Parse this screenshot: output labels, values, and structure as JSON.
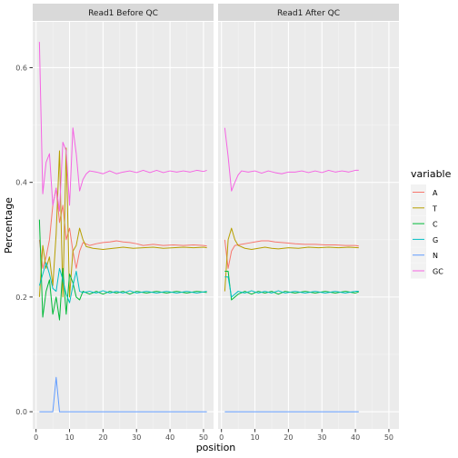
{
  "chart_data": {
    "type": "line",
    "facets": [
      "Read1 Before QC",
      "Read1 After QC"
    ],
    "xlabel": "position",
    "ylabel": "Percentage",
    "xlim": [
      -1,
      53
    ],
    "ylim": [
      -0.03,
      0.68
    ],
    "x_ticks": [
      0,
      10,
      20,
      30,
      40,
      50
    ],
    "y_ticks": [
      0.0,
      0.2,
      0.4,
      0.6
    ],
    "y_tick_labels": [
      "0.0",
      "0.2",
      "0.4",
      "0.6"
    ],
    "grid": true,
    "legend": {
      "title": "variable",
      "placement": "right",
      "items": [
        "A",
        "T",
        "C",
        "G",
        "N",
        "GC"
      ]
    },
    "series": [
      {
        "name": "A",
        "color": "#F8766D",
        "before": [
          [
            1,
            0.3
          ],
          [
            2,
            0.25
          ],
          [
            3,
            0.27
          ],
          [
            4,
            0.3
          ],
          [
            5,
            0.36
          ],
          [
            6,
            0.39
          ],
          [
            7,
            0.33
          ],
          [
            8,
            0.36
          ],
          [
            9,
            0.3
          ],
          [
            10,
            0.32
          ],
          [
            11,
            0.28
          ],
          [
            12,
            0.25
          ],
          [
            13,
            0.28
          ],
          [
            14,
            0.295
          ],
          [
            16,
            0.29
          ],
          [
            18,
            0.293
          ],
          [
            20,
            0.295
          ],
          [
            22,
            0.296
          ],
          [
            24,
            0.298
          ],
          [
            26,
            0.296
          ],
          [
            28,
            0.295
          ],
          [
            30,
            0.293
          ],
          [
            32,
            0.29
          ],
          [
            35,
            0.292
          ],
          [
            38,
            0.29
          ],
          [
            41,
            0.291
          ],
          [
            44,
            0.29
          ],
          [
            47,
            0.291
          ],
          [
            50,
            0.29
          ],
          [
            51,
            0.289
          ]
        ],
        "after": [
          [
            1,
            0.3
          ],
          [
            2,
            0.25
          ],
          [
            3,
            0.28
          ],
          [
            4,
            0.29
          ],
          [
            6,
            0.292
          ],
          [
            8,
            0.294
          ],
          [
            10,
            0.296
          ],
          [
            12,
            0.298
          ],
          [
            14,
            0.298
          ],
          [
            16,
            0.296
          ],
          [
            18,
            0.295
          ],
          [
            20,
            0.294
          ],
          [
            22,
            0.293
          ],
          [
            25,
            0.292
          ],
          [
            28,
            0.292
          ],
          [
            31,
            0.291
          ],
          [
            34,
            0.291
          ],
          [
            37,
            0.29
          ],
          [
            40,
            0.29
          ],
          [
            41,
            0.289
          ]
        ]
      },
      {
        "name": "T",
        "color": "#B79F00",
        "before": [
          [
            1,
            0.2
          ],
          [
            2,
            0.29
          ],
          [
            3,
            0.25
          ],
          [
            4,
            0.27
          ],
          [
            5,
            0.22
          ],
          [
            6,
            0.31
          ],
          [
            7,
            0.455
          ],
          [
            8,
            0.2
          ],
          [
            9,
            0.46
          ],
          [
            10,
            0.2
          ],
          [
            11,
            0.28
          ],
          [
            12,
            0.29
          ],
          [
            13,
            0.32
          ],
          [
            14,
            0.3
          ],
          [
            15,
            0.288
          ],
          [
            17,
            0.285
          ],
          [
            20,
            0.283
          ],
          [
            23,
            0.285
          ],
          [
            26,
            0.287
          ],
          [
            29,
            0.285
          ],
          [
            32,
            0.286
          ],
          [
            35,
            0.287
          ],
          [
            38,
            0.285
          ],
          [
            41,
            0.286
          ],
          [
            44,
            0.287
          ],
          [
            47,
            0.286
          ],
          [
            50,
            0.287
          ],
          [
            51,
            0.286
          ]
        ],
        "after": [
          [
            1,
            0.21
          ],
          [
            2,
            0.3
          ],
          [
            3,
            0.32
          ],
          [
            4,
            0.3
          ],
          [
            5,
            0.29
          ],
          [
            7,
            0.285
          ],
          [
            9,
            0.283
          ],
          [
            11,
            0.285
          ],
          [
            13,
            0.287
          ],
          [
            15,
            0.285
          ],
          [
            17,
            0.284
          ],
          [
            20,
            0.286
          ],
          [
            23,
            0.285
          ],
          [
            26,
            0.287
          ],
          [
            29,
            0.286
          ],
          [
            32,
            0.287
          ],
          [
            35,
            0.286
          ],
          [
            38,
            0.287
          ],
          [
            41,
            0.286
          ]
        ]
      },
      {
        "name": "C",
        "color": "#00BA38",
        "before": [
          [
            1,
            0.335
          ],
          [
            2,
            0.165
          ],
          [
            3,
            0.21
          ],
          [
            4,
            0.23
          ],
          [
            5,
            0.17
          ],
          [
            6,
            0.2
          ],
          [
            7,
            0.16
          ],
          [
            8,
            0.25
          ],
          [
            9,
            0.17
          ],
          [
            10,
            0.24
          ],
          [
            11,
            0.225
          ],
          [
            12,
            0.2
          ],
          [
            13,
            0.195
          ],
          [
            14,
            0.21
          ],
          [
            16,
            0.205
          ],
          [
            18,
            0.21
          ],
          [
            20,
            0.205
          ],
          [
            22,
            0.21
          ],
          [
            24,
            0.207
          ],
          [
            26,
            0.21
          ],
          [
            28,
            0.205
          ],
          [
            30,
            0.21
          ],
          [
            33,
            0.207
          ],
          [
            36,
            0.21
          ],
          [
            39,
            0.207
          ],
          [
            42,
            0.21
          ],
          [
            45,
            0.207
          ],
          [
            48,
            0.21
          ],
          [
            51,
            0.208
          ]
        ],
        "after": [
          [
            1,
            0.245
          ],
          [
            2,
            0.245
          ],
          [
            3,
            0.195
          ],
          [
            4,
            0.2
          ],
          [
            5,
            0.205
          ],
          [
            7,
            0.21
          ],
          [
            9,
            0.205
          ],
          [
            11,
            0.21
          ],
          [
            13,
            0.207
          ],
          [
            15,
            0.21
          ],
          [
            17,
            0.205
          ],
          [
            19,
            0.21
          ],
          [
            22,
            0.207
          ],
          [
            25,
            0.21
          ],
          [
            28,
            0.207
          ],
          [
            31,
            0.21
          ],
          [
            34,
            0.207
          ],
          [
            37,
            0.21
          ],
          [
            40,
            0.207
          ],
          [
            41,
            0.209
          ]
        ]
      },
      {
        "name": "G",
        "color": "#00BFC4",
        "before": [
          [
            1,
            0.22
          ],
          [
            2,
            0.24
          ],
          [
            3,
            0.26
          ],
          [
            4,
            0.24
          ],
          [
            5,
            0.215
          ],
          [
            6,
            0.21
          ],
          [
            7,
            0.25
          ],
          [
            8,
            0.23
          ],
          [
            9,
            0.205
          ],
          [
            10,
            0.19
          ],
          [
            11,
            0.22
          ],
          [
            12,
            0.245
          ],
          [
            13,
            0.21
          ],
          [
            14,
            0.208
          ],
          [
            16,
            0.21
          ],
          [
            18,
            0.207
          ],
          [
            20,
            0.211
          ],
          [
            22,
            0.207
          ],
          [
            24,
            0.21
          ],
          [
            26,
            0.207
          ],
          [
            28,
            0.211
          ],
          [
            30,
            0.207
          ],
          [
            33,
            0.21
          ],
          [
            36,
            0.207
          ],
          [
            39,
            0.21
          ],
          [
            42,
            0.207
          ],
          [
            45,
            0.21
          ],
          [
            48,
            0.207
          ],
          [
            51,
            0.21
          ]
        ],
        "after": [
          [
            1,
            0.235
          ],
          [
            2,
            0.235
          ],
          [
            3,
            0.2
          ],
          [
            4,
            0.205
          ],
          [
            5,
            0.21
          ],
          [
            7,
            0.207
          ],
          [
            9,
            0.211
          ],
          [
            11,
            0.207
          ],
          [
            13,
            0.21
          ],
          [
            15,
            0.207
          ],
          [
            17,
            0.211
          ],
          [
            19,
            0.207
          ],
          [
            22,
            0.21
          ],
          [
            25,
            0.207
          ],
          [
            28,
            0.21
          ],
          [
            31,
            0.207
          ],
          [
            34,
            0.21
          ],
          [
            37,
            0.207
          ],
          [
            40,
            0.21
          ],
          [
            41,
            0.21
          ]
        ]
      },
      {
        "name": "N",
        "color": "#619CFF",
        "before": [
          [
            1,
            0.0
          ],
          [
            4,
            0.0
          ],
          [
            5,
            0.0
          ],
          [
            6,
            0.06
          ],
          [
            7,
            0.0
          ],
          [
            8,
            0.0
          ],
          [
            12,
            0.0
          ],
          [
            20,
            0.0
          ],
          [
            30,
            0.0
          ],
          [
            40,
            0.0
          ],
          [
            51,
            0.0
          ]
        ],
        "after": [
          [
            1,
            0.0
          ],
          [
            10,
            0.0
          ],
          [
            20,
            0.0
          ],
          [
            30,
            0.0
          ],
          [
            41,
            0.0
          ]
        ]
      },
      {
        "name": "GC",
        "color": "#F564E3",
        "before": [
          [
            1,
            0.645
          ],
          [
            2,
            0.38
          ],
          [
            3,
            0.435
          ],
          [
            4,
            0.45
          ],
          [
            5,
            0.36
          ],
          [
            6,
            0.39
          ],
          [
            7,
            0.35
          ],
          [
            8,
            0.47
          ],
          [
            9,
            0.455
          ],
          [
            10,
            0.36
          ],
          [
            11,
            0.495
          ],
          [
            12,
            0.45
          ],
          [
            13,
            0.385
          ],
          [
            14,
            0.405
          ],
          [
            15,
            0.415
          ],
          [
            16,
            0.42
          ],
          [
            18,
            0.418
          ],
          [
            20,
            0.415
          ],
          [
            22,
            0.42
          ],
          [
            24,
            0.415
          ],
          [
            26,
            0.418
          ],
          [
            28,
            0.42
          ],
          [
            30,
            0.417
          ],
          [
            32,
            0.421
          ],
          [
            34,
            0.417
          ],
          [
            36,
            0.421
          ],
          [
            38,
            0.417
          ],
          [
            40,
            0.42
          ],
          [
            42,
            0.418
          ],
          [
            44,
            0.42
          ],
          [
            46,
            0.418
          ],
          [
            48,
            0.421
          ],
          [
            50,
            0.419
          ],
          [
            51,
            0.421
          ]
        ],
        "after": [
          [
            1,
            0.495
          ],
          [
            2,
            0.445
          ],
          [
            3,
            0.385
          ],
          [
            4,
            0.4
          ],
          [
            5,
            0.413
          ],
          [
            6,
            0.42
          ],
          [
            8,
            0.418
          ],
          [
            10,
            0.42
          ],
          [
            12,
            0.416
          ],
          [
            14,
            0.42
          ],
          [
            16,
            0.417
          ],
          [
            18,
            0.415
          ],
          [
            20,
            0.418
          ],
          [
            22,
            0.418
          ],
          [
            24,
            0.42
          ],
          [
            26,
            0.417
          ],
          [
            28,
            0.42
          ],
          [
            30,
            0.417
          ],
          [
            32,
            0.421
          ],
          [
            34,
            0.418
          ],
          [
            36,
            0.42
          ],
          [
            38,
            0.418
          ],
          [
            40,
            0.421
          ],
          [
            41,
            0.421
          ]
        ]
      }
    ]
  }
}
